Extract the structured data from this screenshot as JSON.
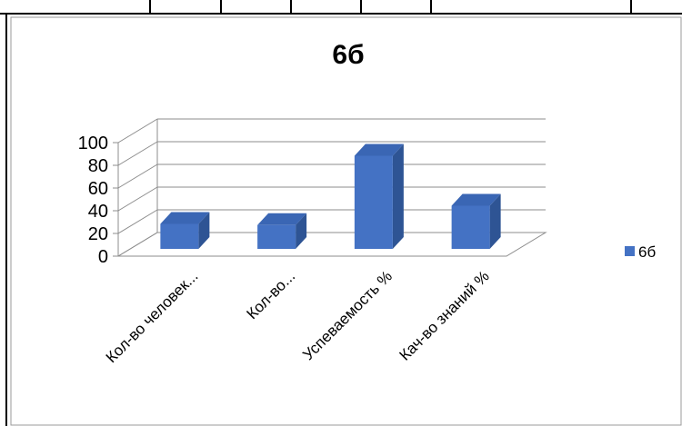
{
  "chart_data": {
    "type": "bar",
    "title": "6б",
    "categories": [
      "Кол-во человек...",
      "Кол-во...",
      "Успеваемость %",
      "Кач-во знаний %"
    ],
    "series": [
      {
        "name": "6б",
        "values": [
          22,
          21,
          82,
          38
        ],
        "color": "#4472C4"
      }
    ],
    "ylim": [
      0,
      100
    ],
    "yticks": [
      0,
      20,
      40,
      60,
      80,
      100
    ],
    "grid": true,
    "legend": "right",
    "style": "3d-column"
  }
}
